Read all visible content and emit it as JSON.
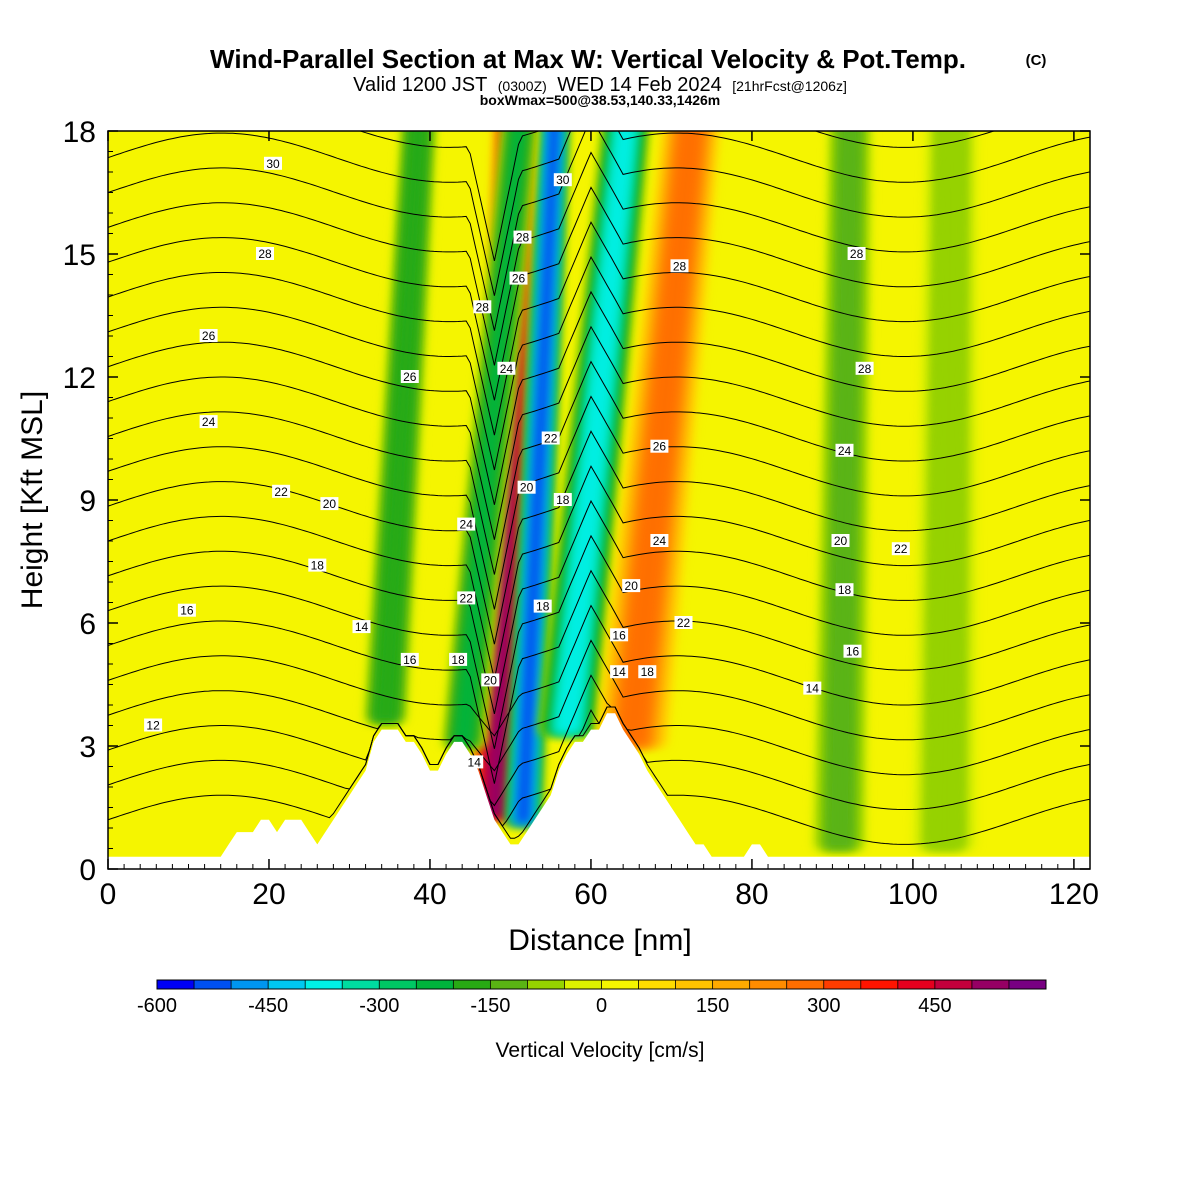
{
  "figure": {
    "title": "Wind-Parallel Section at Max W: Vertical Velocity & Pot.Temp.",
    "copyright": "(C)",
    "valid_prefix": "Valid 1200 JST",
    "valid_utc": "(0300Z)",
    "valid_date": "WED 14 Feb 2024",
    "forecast": "[21hrFcst@1206z]",
    "subtitle": "boxWmax=500@38.53,140.33,1426m"
  },
  "colorbar": {
    "label": "Vertical Velocity [cm/s]",
    "levels": [
      -600,
      -550,
      -500,
      -450,
      -400,
      -350,
      -300,
      -250,
      -200,
      -150,
      -100,
      -50,
      0,
      50,
      100,
      150,
      200,
      250,
      300,
      350,
      400,
      450,
      500,
      550
    ],
    "colors": [
      "#0000f5",
      "#0050f0",
      "#0096f0",
      "#00c8f0",
      "#00f0e6",
      "#00dca0",
      "#00c864",
      "#00b43c",
      "#28aa14",
      "#5ab414",
      "#96d200",
      "#dcf000",
      "#f5f500",
      "#ffdc00",
      "#ffc300",
      "#ffaa00",
      "#ff8c00",
      "#ff6e00",
      "#ff3c00",
      "#ff1400",
      "#e6001e",
      "#c3003c",
      "#960064",
      "#780082"
    ],
    "tick_labels": [
      "-600",
      "-450",
      "-300",
      "-150",
      "0",
      "150",
      "300",
      "450"
    ]
  },
  "chart_data": {
    "type": "heatmap",
    "description_fields": [
      "Vertical velocity (filled contours)",
      "Potential temperature (line contours)"
    ],
    "xlabel": "Distance [nm]",
    "ylabel": "Height [Kft MSL]",
    "xlim": [
      0,
      122
    ],
    "ylim": [
      0,
      18
    ],
    "xticks": [
      0,
      20,
      40,
      60,
      80,
      100,
      120
    ],
    "yticks": [
      0,
      3,
      6,
      9,
      12,
      15,
      18
    ],
    "units": "cm/s",
    "vertical_velocity_features": [
      {
        "x": 48.5,
        "kind": "updraft",
        "max": 500
      },
      {
        "x": 52,
        "kind": "downdraft",
        "min": -550
      },
      {
        "x": 58,
        "kind": "downdraft",
        "min": -400
      },
      {
        "x": 45,
        "kind": "downdraft",
        "min": -250
      },
      {
        "x": 35,
        "kind": "downdraft",
        "min": -200
      },
      {
        "x": 66,
        "kind": "updraft",
        "max": 250
      },
      {
        "x": 91,
        "kind": "downdraft",
        "min": -150
      },
      {
        "x": 104,
        "kind": "downdraft",
        "min": -100
      }
    ],
    "terrain_kft": {
      "x": [
        0,
        14,
        15,
        16,
        18,
        19,
        20,
        21,
        22,
        24,
        25,
        26,
        27,
        28,
        29,
        30,
        31,
        32,
        33,
        34,
        35,
        36,
        37,
        38,
        39,
        40,
        41,
        42,
        43,
        44,
        45,
        46,
        47,
        48,
        49,
        50,
        51,
        52,
        53,
        54,
        55,
        56,
        57,
        58,
        59,
        60,
        61,
        62,
        63,
        64,
        65,
        66,
        67,
        68,
        69,
        70,
        71,
        72,
        73,
        74,
        75,
        76,
        77,
        78,
        79,
        80,
        81,
        82,
        83,
        84,
        85,
        122
      ],
      "y": [
        0.3,
        0.3,
        0.6,
        0.9,
        0.9,
        1.2,
        1.2,
        0.9,
        1.2,
        1.2,
        0.9,
        0.6,
        0.9,
        1.2,
        1.5,
        1.8,
        2.1,
        2.4,
        3.1,
        3.4,
        3.4,
        3.4,
        3.1,
        3.1,
        2.8,
        2.4,
        2.4,
        2.8,
        3.1,
        3.1,
        2.8,
        2.4,
        1.8,
        1.2,
        0.9,
        0.6,
        0.6,
        0.9,
        1.2,
        1.5,
        1.8,
        2.4,
        2.8,
        3.1,
        3.1,
        3.4,
        3.4,
        3.8,
        3.8,
        3.4,
        3.1,
        2.8,
        2.4,
        2.1,
        1.8,
        1.5,
        1.2,
        0.9,
        0.6,
        0.6,
        0.3,
        0.3,
        0.3,
        0.3,
        0.3,
        0.6,
        0.6,
        0.3,
        0.3,
        0.3,
        0.3,
        0.3
      ]
    },
    "theta_contours": [
      10,
      11,
      12,
      13,
      14,
      15,
      16,
      17,
      18,
      19,
      20,
      21,
      22,
      23,
      24,
      25,
      26,
      27,
      28,
      29,
      30
    ],
    "theta_labels": [
      {
        "x": 20.5,
        "y": 17.2,
        "text": "30"
      },
      {
        "x": 19.5,
        "y": 15.0,
        "text": "28"
      },
      {
        "x": 12.5,
        "y": 13.0,
        "text": "26"
      },
      {
        "x": 12.5,
        "y": 10.9,
        "text": "24"
      },
      {
        "x": 21.5,
        "y": 9.2,
        "text": "22"
      },
      {
        "x": 27.5,
        "y": 8.9,
        "text": "20"
      },
      {
        "x": 26.0,
        "y": 7.4,
        "text": "18"
      },
      {
        "x": 9.8,
        "y": 6.3,
        "text": "16"
      },
      {
        "x": 31.5,
        "y": 5.9,
        "text": "14"
      },
      {
        "x": 5.6,
        "y": 3.5,
        "text": "12"
      },
      {
        "x": 37.5,
        "y": 12.0,
        "text": "26"
      },
      {
        "x": 46.5,
        "y": 13.7,
        "text": "28"
      },
      {
        "x": 49.5,
        "y": 12.2,
        "text": "24"
      },
      {
        "x": 44.5,
        "y": 8.4,
        "text": "24"
      },
      {
        "x": 44.5,
        "y": 6.6,
        "text": "22"
      },
      {
        "x": 43.5,
        "y": 5.1,
        "text": "18"
      },
      {
        "x": 37.5,
        "y": 5.1,
        "text": "16"
      },
      {
        "x": 47.5,
        "y": 4.6,
        "text": "20"
      },
      {
        "x": 45.5,
        "y": 2.6,
        "text": "14"
      },
      {
        "x": 56.5,
        "y": 16.8,
        "text": "30"
      },
      {
        "x": 51.5,
        "y": 15.4,
        "text": "28"
      },
      {
        "x": 51.0,
        "y": 14.4,
        "text": "26"
      },
      {
        "x": 55.0,
        "y": 10.5,
        "text": "22"
      },
      {
        "x": 52.0,
        "y": 9.3,
        "text": "20"
      },
      {
        "x": 56.5,
        "y": 9.0,
        "text": "18"
      },
      {
        "x": 54.0,
        "y": 6.4,
        "text": "18"
      },
      {
        "x": 71.0,
        "y": 14.7,
        "text": "28"
      },
      {
        "x": 68.5,
        "y": 10.3,
        "text": "26"
      },
      {
        "x": 68.5,
        "y": 8.0,
        "text": "24"
      },
      {
        "x": 65.0,
        "y": 6.9,
        "text": "20"
      },
      {
        "x": 71.5,
        "y": 6.0,
        "text": "22"
      },
      {
        "x": 63.5,
        "y": 5.7,
        "text": "16"
      },
      {
        "x": 67.0,
        "y": 4.8,
        "text": "18"
      },
      {
        "x": 63.5,
        "y": 4.8,
        "text": "14"
      },
      {
        "x": 93.0,
        "y": 15.0,
        "text": "28"
      },
      {
        "x": 94.0,
        "y": 12.2,
        "text": "28"
      },
      {
        "x": 91.5,
        "y": 10.2,
        "text": "24"
      },
      {
        "x": 91.0,
        "y": 8.0,
        "text": "20"
      },
      {
        "x": 98.5,
        "y": 7.8,
        "text": "22"
      },
      {
        "x": 91.5,
        "y": 6.8,
        "text": "18"
      },
      {
        "x": 92.5,
        "y": 5.3,
        "text": "16"
      },
      {
        "x": 87.5,
        "y": 4.4,
        "text": "14"
      }
    ]
  }
}
